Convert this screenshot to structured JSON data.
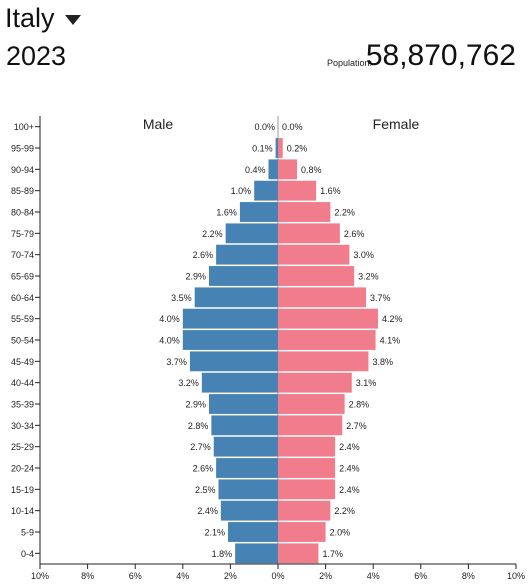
{
  "header": {
    "country": "Italy",
    "year": "2023",
    "population_label": "Population:",
    "population_value": "58,870,762"
  },
  "colors": {
    "male": "#4682b4",
    "female": "#f07c8c"
  },
  "icons": {
    "dropdown": "caret-down-icon"
  },
  "chart_data": {
    "type": "bar",
    "orientation": "horizontal",
    "subtype": "population-pyramid",
    "categories": [
      "100+",
      "95-99",
      "90-94",
      "85-89",
      "80-84",
      "75-79",
      "70-74",
      "65-69",
      "60-64",
      "55-59",
      "50-54",
      "45-49",
      "40-44",
      "35-39",
      "30-34",
      "25-29",
      "20-24",
      "15-19",
      "10-14",
      "5-9",
      "0-4"
    ],
    "series": [
      {
        "name": "Male",
        "side": "left",
        "values": [
          0.0,
          0.1,
          0.4,
          1.0,
          1.6,
          2.2,
          2.6,
          2.9,
          3.5,
          4.0,
          4.0,
          3.7,
          3.2,
          2.9,
          2.8,
          2.7,
          2.6,
          2.5,
          2.4,
          2.1,
          1.8
        ],
        "labels": [
          "0.0%",
          "0.1%",
          "0.4%",
          "1.0%",
          "1.6%",
          "2.2%",
          "2.6%",
          "2.9%",
          "3.5%",
          "4.0%",
          "4.0%",
          "3.7%",
          "3.2%",
          "2.9%",
          "2.8%",
          "2.7%",
          "2.6%",
          "2.5%",
          "2.4%",
          "2.1%",
          "1.8%"
        ]
      },
      {
        "name": "Female",
        "side": "right",
        "values": [
          0.0,
          0.2,
          0.8,
          1.6,
          2.2,
          2.6,
          3.0,
          3.2,
          3.7,
          4.2,
          4.1,
          3.8,
          3.1,
          2.8,
          2.7,
          2.4,
          2.4,
          2.4,
          2.2,
          2.0,
          1.7
        ],
        "labels": [
          "0.0%",
          "0.2%",
          "0.8%",
          "1.6%",
          "2.2%",
          "2.6%",
          "3.0%",
          "3.2%",
          "3.7%",
          "4.2%",
          "4.1%",
          "3.8%",
          "3.1%",
          "2.8%",
          "2.7%",
          "2.4%",
          "2.4%",
          "2.4%",
          "2.2%",
          "2.0%",
          "1.7%"
        ]
      }
    ],
    "xlim": [
      -10,
      10
    ],
    "x_ticks": [
      "10%",
      "8%",
      "6%",
      "4%",
      "2%",
      "0%",
      "2%",
      "4%",
      "6%",
      "8%",
      "10%"
    ],
    "unit": "%"
  }
}
